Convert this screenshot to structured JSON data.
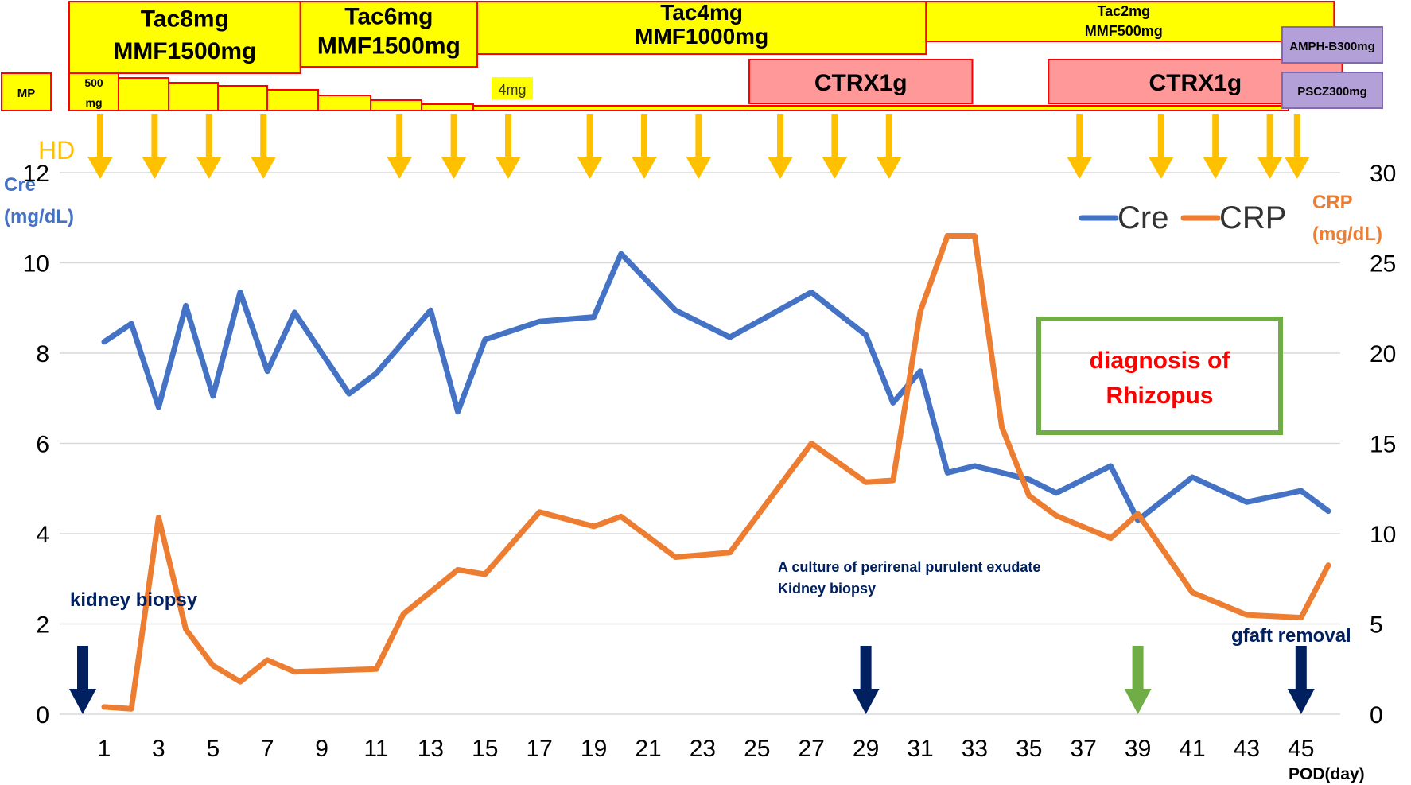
{
  "chart_data": {
    "type": "line",
    "xlabel": "POD(day)",
    "x_ticks": [
      1,
      3,
      5,
      7,
      9,
      11,
      13,
      15,
      17,
      19,
      21,
      23,
      25,
      27,
      29,
      31,
      33,
      35,
      37,
      39,
      41,
      43,
      45
    ],
    "xlim": [
      0,
      46.5
    ],
    "y_left": {
      "label_line1": "Cre",
      "label_line2": "(mg/dL)",
      "lim": [
        0,
        12
      ],
      "ticks": [
        0,
        2,
        4,
        6,
        8,
        10,
        12
      ]
    },
    "y_right": {
      "label_line1": "CRP",
      "label_line2": "(mg/dL)",
      "lim": [
        0,
        30
      ],
      "ticks": [
        0,
        5,
        10,
        15,
        20,
        25,
        30
      ]
    },
    "legend": {
      "placement": "top-right"
    },
    "series": [
      {
        "name": "Cre",
        "axis": "left",
        "color": "#4472C4",
        "points": [
          [
            1,
            8.25
          ],
          [
            2,
            8.65
          ],
          [
            3,
            6.8
          ],
          [
            4,
            9.05
          ],
          [
            5,
            7.05
          ],
          [
            6,
            9.35
          ],
          [
            7,
            7.6
          ],
          [
            8,
            8.9
          ],
          [
            10,
            7.1
          ],
          [
            11,
            7.55
          ],
          [
            13,
            8.95
          ],
          [
            14,
            6.7
          ],
          [
            15,
            8.3
          ],
          [
            17,
            8.7
          ],
          [
            19,
            8.8
          ],
          [
            20,
            10.2
          ],
          [
            22,
            8.95
          ],
          [
            24,
            8.35
          ],
          [
            27,
            9.35
          ],
          [
            29,
            8.4
          ],
          [
            30,
            6.9
          ],
          [
            31,
            7.6
          ],
          [
            32,
            5.35
          ],
          [
            33,
            5.5
          ],
          [
            34,
            5.35
          ],
          [
            35,
            5.2
          ],
          [
            36,
            4.9
          ],
          [
            38,
            5.5
          ],
          [
            39,
            4.3
          ],
          [
            41,
            5.25
          ],
          [
            43,
            4.7
          ],
          [
            45,
            4.95
          ],
          [
            46,
            4.5
          ]
        ]
      },
      {
        "name": "CRP",
        "axis": "right",
        "color": "#ED7D31",
        "points": [
          [
            1,
            0.4
          ],
          [
            2,
            0.3
          ],
          [
            3,
            10.9
          ],
          [
            4,
            4.7
          ],
          [
            5,
            2.7
          ],
          [
            6,
            1.8
          ],
          [
            7,
            3.0
          ],
          [
            8,
            2.35
          ],
          [
            11,
            2.5
          ],
          [
            12,
            5.55
          ],
          [
            14,
            8.0
          ],
          [
            15,
            7.75
          ],
          [
            17,
            11.2
          ],
          [
            19,
            10.4
          ],
          [
            20,
            10.95
          ],
          [
            22,
            8.7
          ],
          [
            24,
            8.95
          ],
          [
            27,
            15.0
          ],
          [
            29,
            12.85
          ],
          [
            30,
            12.95
          ],
          [
            31,
            22.3
          ],
          [
            32,
            26.5
          ],
          [
            33,
            26.5
          ],
          [
            34,
            15.9
          ],
          [
            35,
            12.1
          ],
          [
            36,
            11.0
          ],
          [
            38,
            9.75
          ],
          [
            39,
            11.1
          ],
          [
            41,
            6.75
          ],
          [
            43,
            5.5
          ],
          [
            45,
            5.35
          ],
          [
            46,
            8.25
          ]
        ]
      }
    ],
    "hd_label": "HD",
    "hd_days": [
      1,
      3,
      5,
      7,
      12,
      14,
      16,
      19,
      21,
      23,
      26,
      28,
      30,
      37,
      40,
      42,
      44,
      45
    ],
    "hd_color": "#FFC000"
  },
  "treatment_bars": {
    "immunosuppression": [
      {
        "line1": "Tac8mg",
        "line2": "MMF1500mg",
        "start": 0,
        "end": 8.5
      },
      {
        "line1": "Tac6mg",
        "line2": "MMF1500mg",
        "start": 8.5,
        "end": 15.0
      },
      {
        "line1": "Tac4mg",
        "line2": "MMF1000mg",
        "start": 15.0,
        "end": 31.5
      },
      {
        "line1": "Tac2mg",
        "line2": "MMF500mg",
        "start": 31.5,
        "end": 46.5
      }
    ],
    "steroid": {
      "start_label": "MP",
      "dose_label_line1": "500",
      "dose_label_line2": "mg",
      "taper_label": "4mg"
    },
    "antibiotics": [
      {
        "label": "CTRX1g",
        "start": 25.0,
        "end": 33.2
      },
      {
        "label": "CTRX1g",
        "start": 36.0,
        "end": 46.8
      }
    ],
    "antifungals": [
      {
        "label": "AMPH-B300mg"
      },
      {
        "label": "PSCZ300mg"
      }
    ]
  },
  "annotations": {
    "kidney_biopsy": "kidney biopsy",
    "culture_line1": "A culture of perirenal purulent exudate",
    "culture_line2": "Kidney biopsy",
    "graft_removal": "gfaft removal",
    "diagnosis_line1": "diagnosis of",
    "diagnosis_line2": "Rhizopus"
  },
  "event_arrows": [
    {
      "day": 0.1,
      "color": "#002060"
    },
    {
      "day": 29,
      "color": "#002060"
    },
    {
      "day": 39,
      "color": "#70AD47"
    },
    {
      "day": 45,
      "color": "#002060"
    }
  ],
  "colors": {
    "immuno_fill": "#FFFF00",
    "immuno_border": "#FF0000",
    "ctrx_fill": "#FF9999",
    "antifungal_fill": "#B4A0D8",
    "antifungal_border": "#7F6AB0",
    "diagnosis_box": "#70AD47",
    "diagnosis_text": "#FF0000",
    "annotation_text": "#002060"
  }
}
